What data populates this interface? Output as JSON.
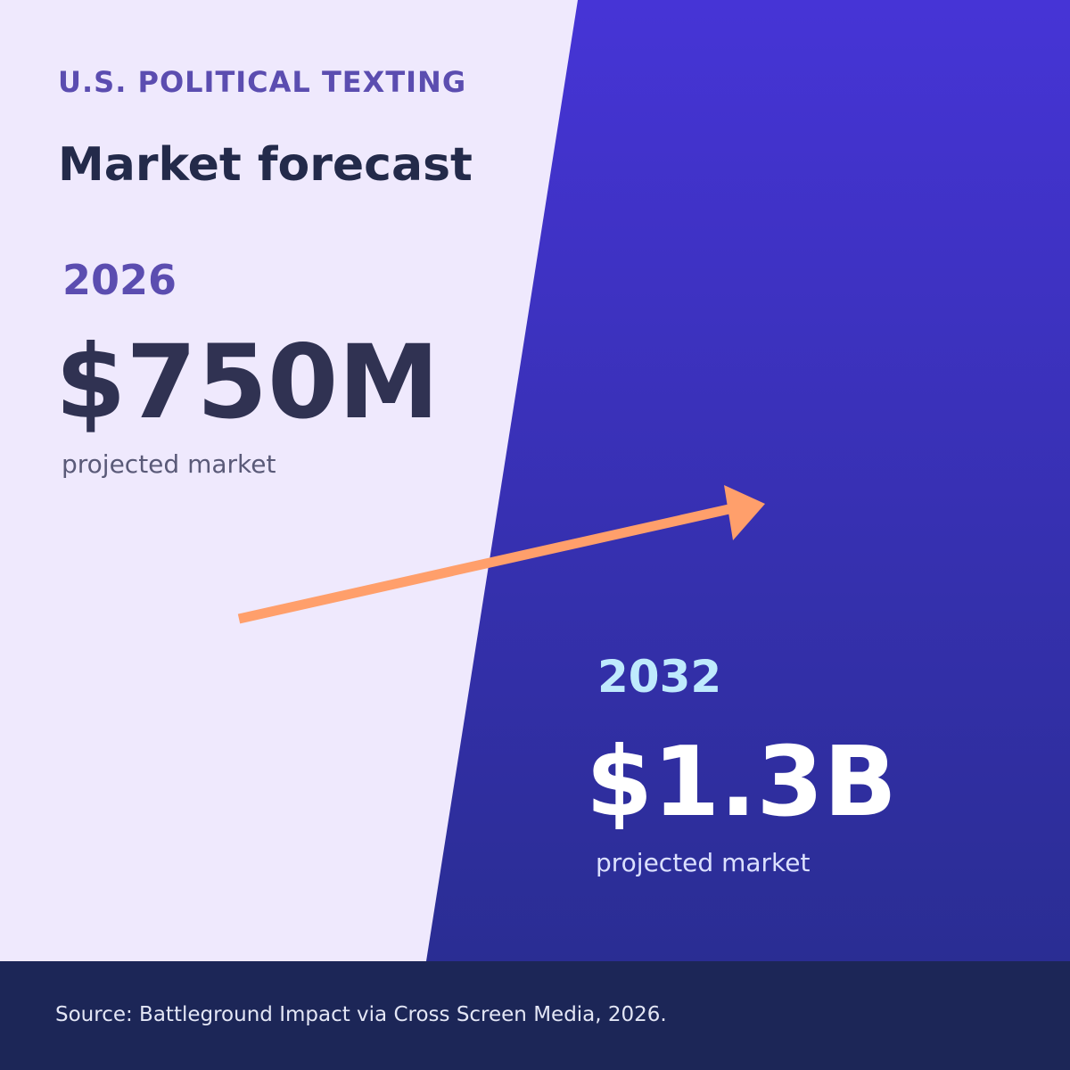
{
  "header": {
    "kicker": "U.S. POLITICAL TEXTING",
    "title": "Market forecast"
  },
  "stats": [
    {
      "year": "2026",
      "value": "$750M",
      "label": "projected market"
    },
    {
      "year": "2032",
      "value": "$1.3B",
      "label": "projected market"
    }
  ],
  "footer": {
    "source": "Source: Battleground Impact via Cross Screen Media, 2026."
  }
}
